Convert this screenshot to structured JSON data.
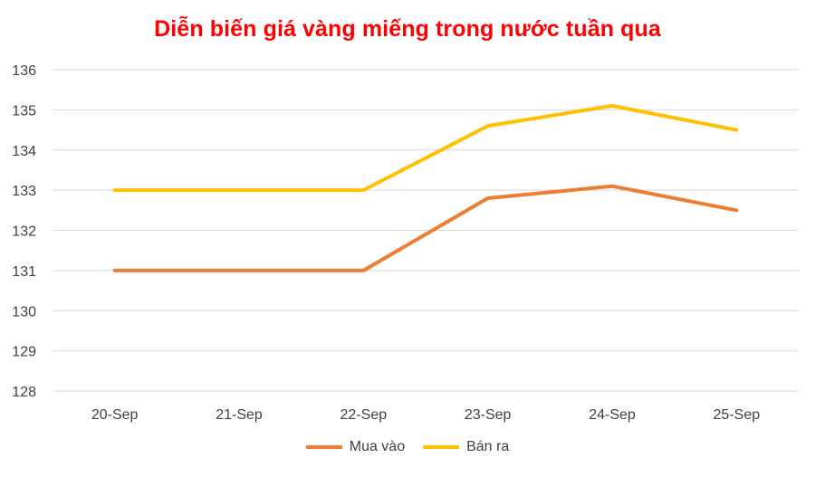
{
  "chart_data": {
    "type": "line",
    "title": "Diễn biến giá vàng miếng trong nước tuần qua",
    "categories": [
      "20-Sep",
      "21-Sep",
      "22-Sep",
      "23-Sep",
      "24-Sep",
      "25-Sep"
    ],
    "series": [
      {
        "name": "Mua vào",
        "color": "#ed7d31",
        "values": [
          131,
          131,
          131,
          132.8,
          133.1,
          132.5
        ]
      },
      {
        "name": "Bán ra",
        "color": "#ffc000",
        "values": [
          133,
          133,
          133,
          134.6,
          135.1,
          134.5
        ]
      }
    ],
    "ylim": [
      128,
      136
    ],
    "yticks": [
      128,
      129,
      130,
      131,
      132,
      133,
      134,
      135,
      136
    ],
    "grid": true,
    "legend_position": "bottom"
  }
}
